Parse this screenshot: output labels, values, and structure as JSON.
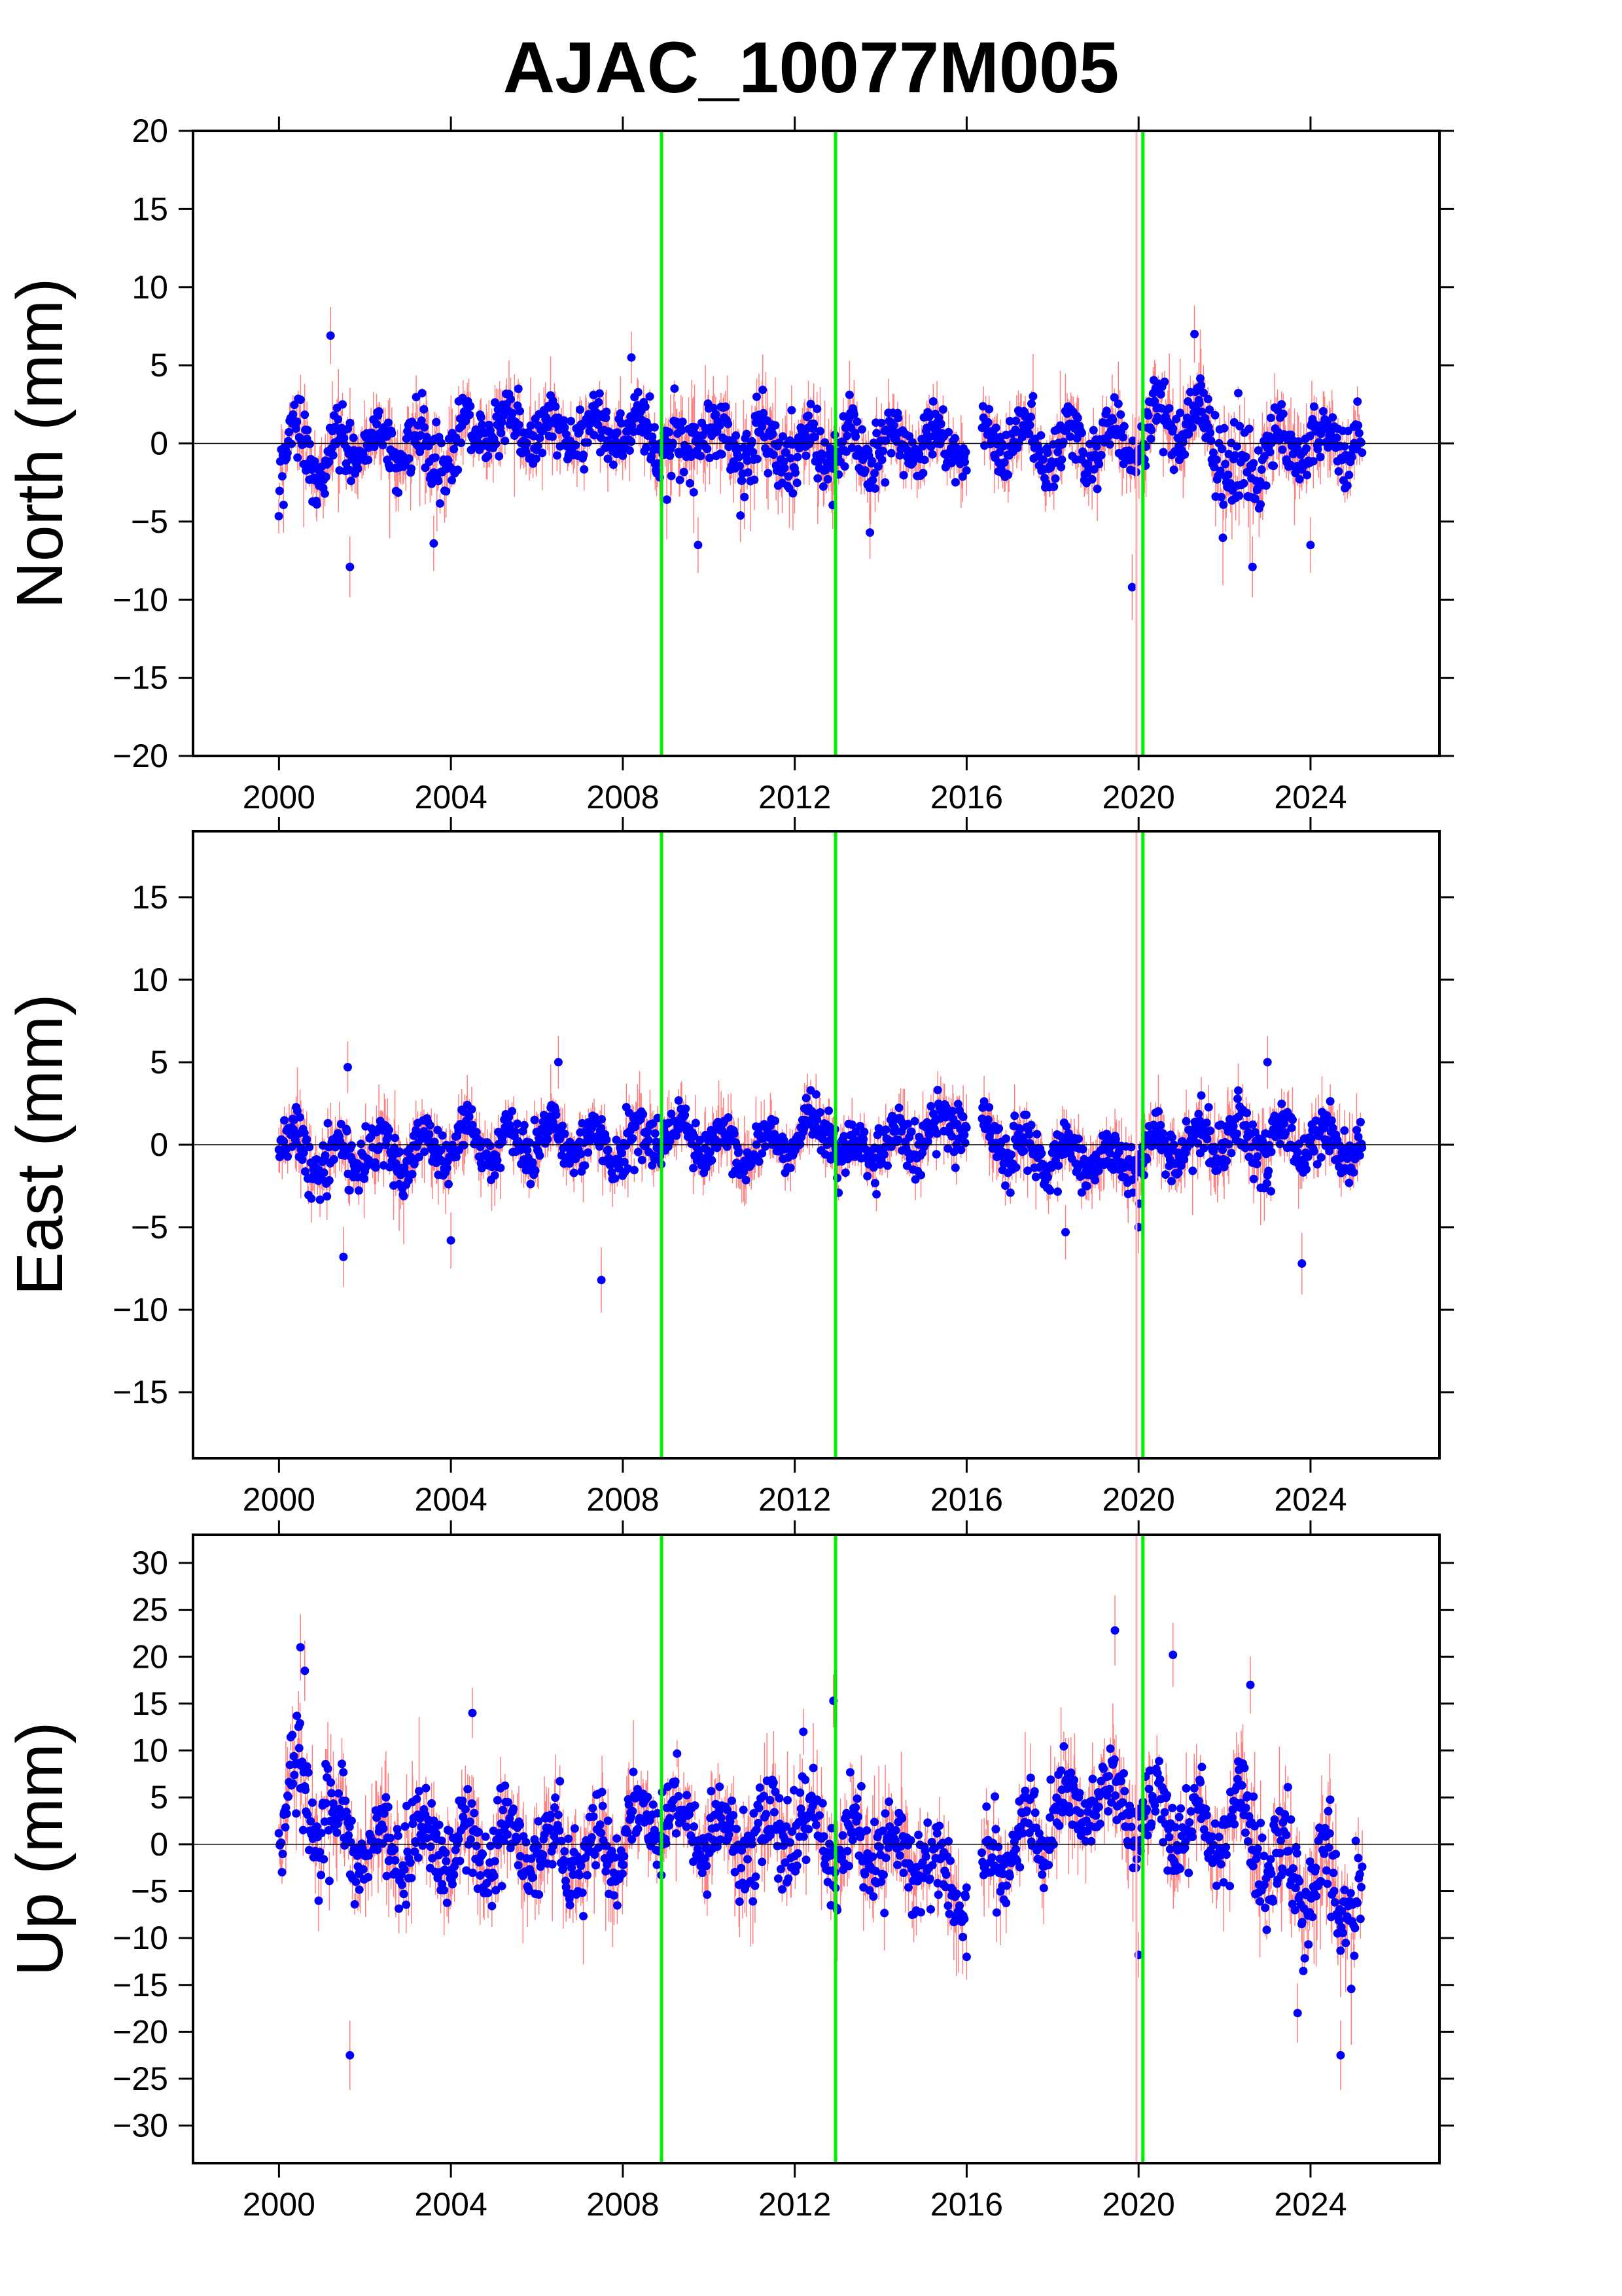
{
  "title": "AJAC_10077M005",
  "colors": {
    "point": "#0000ff",
    "error_bar": "#ff6a6a",
    "event_line": "#00ee00",
    "event_line_faint": "#ffb0b0",
    "zero_line": "#000000"
  },
  "x_axis": {
    "range": [
      1998.0,
      2027.0
    ],
    "ticks": [
      2000,
      2004,
      2008,
      2012,
      2016,
      2020,
      2024
    ],
    "tick_labels": [
      "2000",
      "2004",
      "2008",
      "2012",
      "2016",
      "2020",
      "2024"
    ]
  },
  "event_lines": [
    2008.9,
    2012.95,
    2020.1
  ],
  "faint_event_lines": [
    2019.95
  ],
  "chart_data": [
    {
      "type": "scatter",
      "component": "north",
      "ylabel": "North (mm)",
      "ylim": [
        -20,
        20
      ],
      "yticks": [
        -20,
        -15,
        -10,
        -5,
        0,
        5,
        10,
        15,
        20
      ],
      "ytick_labels": [
        "−20",
        "−15",
        "−10",
        "−5",
        "0",
        "5",
        "10",
        "15",
        "20"
      ],
      "data_span": [
        2000.0,
        2025.2
      ],
      "gap": [
        2016.0,
        2016.35
      ],
      "series": [
        {
          "x": [
            2000.0,
            2000.5,
            2001.0,
            2001.5,
            2002.0,
            2002.5,
            2003.0,
            2003.5,
            2004.0,
            2004.5,
            2005.0,
            2005.5,
            2006.0,
            2006.5,
            2007.0,
            2007.5,
            2008.0,
            2008.5,
            2009.0,
            2009.5,
            2010.0,
            2010.5,
            2011.0,
            2011.5,
            2012.0,
            2012.5,
            2013.0,
            2013.5,
            2014.0,
            2014.5,
            2015.0,
            2015.5,
            2016.5,
            2017.0,
            2017.5,
            2018.0,
            2018.5,
            2019.0,
            2019.5,
            2020.0,
            2020.5,
            2021.0,
            2021.5,
            2022.0,
            2022.5,
            2023.0,
            2023.5,
            2024.0,
            2024.5,
            2025.0
          ],
          "y": [
            -1.5,
            0.5,
            -1.0,
            -0.5,
            0.0,
            -0.5,
            0.5,
            -1.0,
            0.0,
            0.5,
            1.0,
            1.0,
            1.0,
            0.5,
            1.0,
            0.5,
            1.0,
            0.5,
            0.5,
            -1.0,
            1.0,
            -1.0,
            0.5,
            -1.0,
            0.0,
            -1.0,
            0.5,
            -0.5,
            0.5,
            -0.5,
            0.5,
            -0.5,
            0.5,
            0.0,
            0.5,
            -0.5,
            0.5,
            -0.5,
            0.5,
            -0.5,
            2.0,
            1.0,
            1.0,
            -1.0,
            -3.0,
            0.5,
            -1.0,
            0.5,
            -0.5,
            0.5
          ],
          "amplitude": [
            2.0,
            2.5,
            2.5,
            2.0,
            2.0,
            2.0,
            2.0,
            2.5,
            2.0,
            2.0,
            2.0,
            2.0,
            2.0,
            2.0,
            2.0,
            2.0,
            2.0,
            2.0,
            2.0,
            2.5,
            2.5,
            2.5,
            2.5,
            2.5,
            2.5,
            2.5,
            2.5,
            2.5,
            2.0,
            2.0,
            2.0,
            2.0,
            2.0,
            2.0,
            2.0,
            2.0,
            2.0,
            2.0,
            2.0,
            2.0,
            2.5,
            2.5,
            2.5,
            3.0,
            3.0,
            2.5,
            2.5,
            2.0,
            2.0,
            2.0
          ]
        }
      ],
      "outliers": [
        {
          "x": 2001.2,
          "y": 6.9
        },
        {
          "x": 2001.65,
          "y": -7.9
        },
        {
          "x": 2003.6,
          "y": -6.4
        },
        {
          "x": 2008.2,
          "y": 5.5
        },
        {
          "x": 2009.75,
          "y": -6.5
        },
        {
          "x": 2013.75,
          "y": -5.7
        },
        {
          "x": 2019.85,
          "y": -9.2
        },
        {
          "x": 2021.3,
          "y": 7.0
        },
        {
          "x": 2022.65,
          "y": -7.9
        },
        {
          "x": 2024.0,
          "y": -6.5
        }
      ]
    },
    {
      "type": "scatter",
      "component": "east",
      "ylabel": "East (mm)",
      "ylim": [
        -19,
        19
      ],
      "yticks": [
        -15,
        -10,
        -5,
        0,
        5,
        10,
        15
      ],
      "ytick_labels": [
        "−15",
        "−10",
        "−5",
        "0",
        "5",
        "10",
        "15"
      ],
      "data_span": [
        2000.0,
        2025.2
      ],
      "gap": [
        2016.0,
        2016.35
      ],
      "series": [
        {
          "x": [
            2000.0,
            2001.0,
            2002.0,
            2003.0,
            2004.0,
            2005.0,
            2006.0,
            2007.0,
            2008.0,
            2008.9,
            2009.5,
            2010.0,
            2011.0,
            2012.0,
            2012.9,
            2013.0,
            2014.0,
            2015.0,
            2015.9,
            2016.5,
            2017.0,
            2018.0,
            2019.0,
            2020.0,
            2020.2,
            2021.0,
            2022.0,
            2023.0,
            2024.0,
            2025.0
          ],
          "y": [
            0.0,
            -1.0,
            -0.5,
            -0.5,
            0.0,
            0.0,
            0.5,
            0.0,
            0.0,
            0.5,
            0.5,
            0.0,
            -0.5,
            0.5,
            1.5,
            -1.0,
            0.0,
            0.5,
            1.5,
            0.5,
            0.0,
            -0.5,
            -1.0,
            -1.0,
            -0.5,
            0.0,
            0.5,
            0.5,
            0.0,
            0.0
          ],
          "amplitude": [
            1.8,
            2.0,
            2.0,
            1.8,
            1.8,
            1.8,
            1.8,
            1.8,
            1.8,
            1.6,
            1.6,
            1.6,
            1.6,
            1.6,
            1.6,
            1.6,
            1.6,
            1.6,
            1.6,
            1.6,
            1.6,
            1.6,
            1.6,
            1.6,
            1.8,
            1.8,
            2.0,
            2.0,
            1.8,
            1.8
          ]
        }
      ],
      "outliers": [
        {
          "x": 2001.6,
          "y": 4.7
        },
        {
          "x": 2001.5,
          "y": -6.8
        },
        {
          "x": 2004.0,
          "y": -5.8
        },
        {
          "x": 2006.5,
          "y": 5.0
        },
        {
          "x": 2007.5,
          "y": -8.2
        },
        {
          "x": 2018.3,
          "y": -5.3
        },
        {
          "x": 2020.0,
          "y": -5.0
        },
        {
          "x": 2023.0,
          "y": 5.0
        },
        {
          "x": 2023.8,
          "y": -7.2
        }
      ]
    },
    {
      "type": "scatter",
      "component": "up",
      "ylabel": "Up (mm)",
      "ylim": [
        -34,
        33
      ],
      "yticks": [
        -30,
        -25,
        -20,
        -15,
        -10,
        -5,
        0,
        5,
        10,
        15,
        20,
        25,
        30
      ],
      "ytick_labels": [
        "−30",
        "−25",
        "−20",
        "−15",
        "−10",
        "−5",
        "0",
        "5",
        "10",
        "15",
        "20",
        "25",
        "30"
      ],
      "data_span": [
        2000.0,
        2025.2
      ],
      "gap": [
        2016.0,
        2016.35
      ],
      "series": [
        {
          "x": [
            2000.0,
            2000.5,
            2001.0,
            2002.0,
            2003.0,
            2004.0,
            2005.0,
            2006.0,
            2007.0,
            2008.0,
            2008.9,
            2009.5,
            2010.0,
            2011.0,
            2012.0,
            2013.0,
            2014.0,
            2015.0,
            2015.9,
            2016.5,
            2017.0,
            2018.0,
            2019.0,
            2019.5,
            2020.0,
            2020.5,
            2021.0,
            2022.0,
            2022.5,
            2023.0,
            2023.5,
            2024.0,
            2024.5,
            2025.0
          ],
          "y": [
            0.0,
            7.0,
            2.0,
            0.0,
            0.0,
            0.0,
            0.0,
            -1.0,
            -1.0,
            0.0,
            4.0,
            2.0,
            1.0,
            0.0,
            2.0,
            1.0,
            -1.0,
            -2.0,
            -6.0,
            -2.0,
            0.0,
            3.0,
            5.0,
            5.0,
            3.0,
            2.0,
            2.0,
            2.0,
            2.0,
            -2.0,
            -3.0,
            -4.0,
            -5.0,
            -5.0
          ],
          "amplitude": [
            5,
            6,
            6,
            5,
            5,
            5,
            5,
            5,
            5,
            5,
            4,
            4,
            5,
            5,
            5,
            5,
            5,
            5,
            4,
            5,
            5,
            5,
            5,
            5,
            5,
            5,
            5,
            5,
            6,
            6,
            6,
            6,
            6,
            5
          ]
        }
      ],
      "outliers": [
        {
          "x": 2000.5,
          "y": 21.0
        },
        {
          "x": 2000.6,
          "y": 18.5
        },
        {
          "x": 2001.65,
          "y": -22.5
        },
        {
          "x": 2004.5,
          "y": 14.0
        },
        {
          "x": 2012.9,
          "y": 15.3
        },
        {
          "x": 2012.2,
          "y": 12.0
        },
        {
          "x": 2016.0,
          "y": -12.0
        },
        {
          "x": 2019.45,
          "y": 22.8
        },
        {
          "x": 2020.0,
          "y": -11.8
        },
        {
          "x": 2020.8,
          "y": 20.2
        },
        {
          "x": 2022.6,
          "y": 17.0
        },
        {
          "x": 2024.7,
          "y": -22.5
        },
        {
          "x": 2023.7,
          "y": -18.0
        }
      ]
    }
  ]
}
